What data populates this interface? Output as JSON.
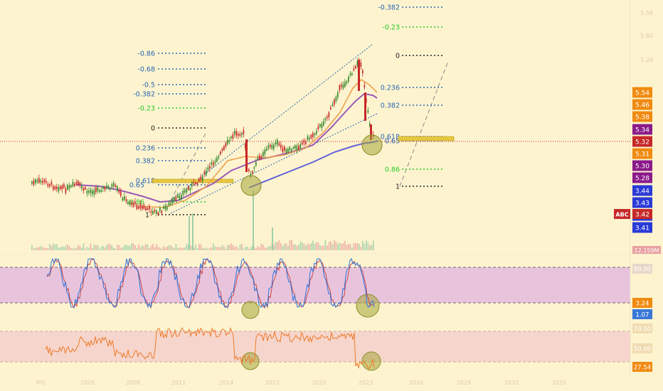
{
  "colors": {
    "background": "#fdf4cf",
    "candle_up": "#3a8a2e",
    "candle_down": "#c62828",
    "ma_orange": "#f0a050",
    "ma_purple": "#9b59b6",
    "ma_indigo": "#6060d8",
    "fib_blue": "#2a66b4",
    "fib_green": "#28c828",
    "fib_black": "#222222",
    "highlight_circle": "#a5a53a",
    "stoch_band": "#e8c4dc",
    "rsi_band": "#f6d6cc",
    "rsi_line": "#ee7a2a",
    "stoch_k": "#3a78d8",
    "stoch_d": "#c84848"
  },
  "chart_data": [
    {
      "type": "candlestick",
      "panel": "price",
      "x_axis": {
        "ticks": [
          "IPO",
          "2005",
          "2008",
          "2011",
          "2014",
          "2017",
          "2020",
          "2023",
          "2026",
          "2029",
          "2032",
          "2035"
        ]
      },
      "y_axis_ticks": [
        "5.56",
        "5.60",
        "5.20"
      ],
      "y_axis_price_tags": [
        {
          "label": "5.54",
          "color": "#f08a10"
        },
        {
          "label": "5.46",
          "color": "#f08a10"
        },
        {
          "label": "5.38",
          "color": "#f08a10"
        },
        {
          "label": "5.34",
          "color": "#8a1a8a"
        },
        {
          "label": "5.32",
          "color": "#c62828"
        },
        {
          "label": "5.31",
          "color": "#f08a10"
        },
        {
          "label": "5.30",
          "color": "#8a1a8a"
        },
        {
          "label": "5.28",
          "color": "#8a1a8a"
        },
        {
          "label": "3.44",
          "color": "#2a3ad8"
        },
        {
          "label": "3.43",
          "color": "#2a3ad8"
        },
        {
          "label": "3.42",
          "color": "#2a3ad8"
        },
        {
          "label": "3.41",
          "color": "#2a3ad8"
        }
      ],
      "symbol_tag": {
        "label": "ABC",
        "value": "3.42"
      },
      "volume_label": "12.159M",
      "fib_left": [
        {
          "label": "-0.86",
          "color": "#2a66b4"
        },
        {
          "label": "-0.68",
          "color": "#2a66b4"
        },
        {
          "label": "-0.5",
          "color": "#2a66b4"
        },
        {
          "label": "-0.382",
          "color": "#2a66b4"
        },
        {
          "label": "-0.23",
          "color": "#28c828"
        },
        {
          "label": "0",
          "color": "#222222"
        },
        {
          "label": "0.236",
          "color": "#2a66b4"
        },
        {
          "label": "0.382",
          "color": "#2a66b4"
        },
        {
          "label": "0.618",
          "color": "#2a66b4"
        },
        {
          "label": "0.65",
          "color": "#2a66b4"
        },
        {
          "label": "0.86",
          "color": "#28c828"
        },
        {
          "label": "1",
          "color": "#222222"
        }
      ],
      "fib_right": [
        {
          "label": "-0.382",
          "color": "#2a66b4"
        },
        {
          "label": "-0.23",
          "color": "#28c828"
        },
        {
          "label": "0",
          "color": "#222222"
        },
        {
          "label": "0.236",
          "color": "#2a66b4"
        },
        {
          "label": "0.382",
          "color": "#2a66b4"
        },
        {
          "label": "0.618",
          "color": "#2a66b4"
        },
        {
          "label": "0.65",
          "color": "#2a66b4"
        },
        {
          "label": "0.86",
          "color": "#28c828"
        },
        {
          "label": "1",
          "color": "#222222"
        }
      ],
      "legend": "none"
    },
    {
      "type": "line",
      "panel": "stochastic",
      "axis_tags": [
        {
          "label": "80.00",
          "color": "#e8d8c8"
        },
        {
          "label": "3.24",
          "color": "#f08a10"
        },
        {
          "label": "1.07",
          "color": "#3a78d8"
        }
      ]
    },
    {
      "type": "line",
      "panel": "rsi",
      "axis_tags": [
        {
          "label": "70.00",
          "color": "#f0dcb0"
        },
        {
          "label": "50.00",
          "color": "#f0dcb0"
        },
        {
          "label": "27.54",
          "color": "#f08a10"
        }
      ]
    }
  ]
}
